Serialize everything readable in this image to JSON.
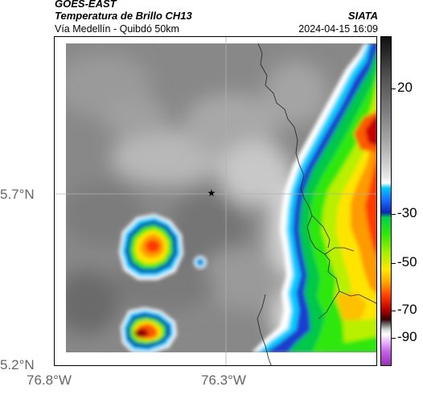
{
  "header": {
    "satellite": "GOES-EAST",
    "product": "Temperatura de Brillo CH13",
    "agency": "SIATA",
    "route": "Vía Medellín - Quibdó 50km",
    "timestamp": "2024-04-15 16:09"
  },
  "map": {
    "lat_labels": [
      "5.7°N",
      "5.2°N"
    ],
    "lon_labels": [
      "76.8°W",
      "76.3°W"
    ],
    "marker_icon": "star-marker-icon",
    "colors": {
      "cold_red": "#ff2200",
      "orange": "#ff8c00",
      "yellow": "#ffe400",
      "green": "#2fe80a",
      "blue": "#0a28b0",
      "cyan": "#00d0ff",
      "gray_background": "#8a8a8a"
    }
  },
  "colorbar": {
    "labels": [
      "20",
      "-30",
      "-50",
      "-70",
      "-90"
    ]
  }
}
